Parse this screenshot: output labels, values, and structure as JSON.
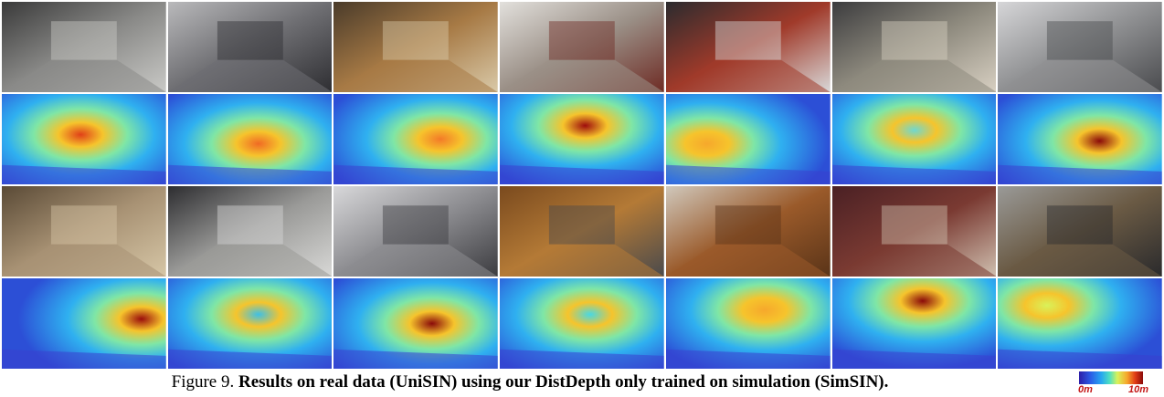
{
  "figure": {
    "caption_prefix": "Figure 9.",
    "caption_bold": "Results on real data (UniSIN) using our DistDepth only trained on simulation (SimSIN).",
    "colorbar": {
      "min_label": "0m",
      "max_label": "10m"
    }
  },
  "rows": [
    {
      "kind": "rgb",
      "cells": [
        {
          "tone": [
            "#3a3a3a",
            "#8a8a88",
            "#c9c9c6"
          ]
        },
        {
          "tone": [
            "#b9b9bb",
            "#6e6e72",
            "#2e2e32"
          ]
        },
        {
          "tone": [
            "#4a3b2a",
            "#a77a45",
            "#d9c9a8"
          ]
        },
        {
          "tone": [
            "#e2e0dc",
            "#9a8f86",
            "#6e2b24"
          ]
        },
        {
          "tone": [
            "#2b2b2e",
            "#a03a2a",
            "#d9d9d9"
          ]
        },
        {
          "tone": [
            "#3c3c3e",
            "#8e8a7e",
            "#d8d0c2"
          ]
        },
        {
          "tone": [
            "#d6d6d8",
            "#8f9092",
            "#4a4b4e"
          ]
        }
      ]
    },
    {
      "kind": "depth",
      "cells": [
        {
          "hot": [
            0.48,
            0.45
          ],
          "peak": "#e04018"
        },
        {
          "hot": [
            0.55,
            0.55
          ],
          "peak": "#f06a24"
        },
        {
          "hot": [
            0.65,
            0.5
          ],
          "peak": "#f37a28"
        },
        {
          "hot": [
            0.52,
            0.35
          ],
          "peak": "#9e0d0d"
        },
        {
          "hot": [
            0.25,
            0.55
          ],
          "peak": "#f6a82c"
        },
        {
          "hot": [
            0.5,
            0.4
          ],
          "peak": "#6fd8d0"
        },
        {
          "hot": [
            0.62,
            0.52
          ],
          "peak": "#8a0a0a"
        }
      ]
    },
    {
      "kind": "rgb",
      "cells": [
        {
          "tone": [
            "#5a4a36",
            "#a89274",
            "#d6c6a6"
          ]
        },
        {
          "tone": [
            "#2d2d30",
            "#9a9a98",
            "#d8d8d6"
          ]
        },
        {
          "tone": [
            "#d8d8da",
            "#8c8c90",
            "#3c3c40"
          ]
        },
        {
          "tone": [
            "#7a4a1e",
            "#b47a36",
            "#4a4a4c"
          ]
        },
        {
          "tone": [
            "#d0c8bc",
            "#9a5a2a",
            "#5a3418"
          ]
        },
        {
          "tone": [
            "#4a2024",
            "#7a3a32",
            "#d0c0b0"
          ]
        },
        {
          "tone": [
            "#9a9a98",
            "#6a5a44",
            "#2a2a2c"
          ]
        }
      ]
    },
    {
      "kind": "depth",
      "cells": [
        {
          "hot": [
            0.85,
            0.45
          ],
          "peak": "#9a0c0c"
        },
        {
          "hot": [
            0.55,
            0.4
          ],
          "peak": "#3ec0e6"
        },
        {
          "hot": [
            0.6,
            0.5
          ],
          "peak": "#8a0a0a"
        },
        {
          "hot": [
            0.55,
            0.4
          ],
          "peak": "#48d8e4"
        },
        {
          "hot": [
            0.6,
            0.35
          ],
          "peak": "#f6a82c"
        },
        {
          "hot": [
            0.55,
            0.25
          ],
          "peak": "#8a0a0a"
        },
        {
          "hot": [
            0.3,
            0.3
          ],
          "peak": "#d9f25a"
        }
      ]
    }
  ]
}
